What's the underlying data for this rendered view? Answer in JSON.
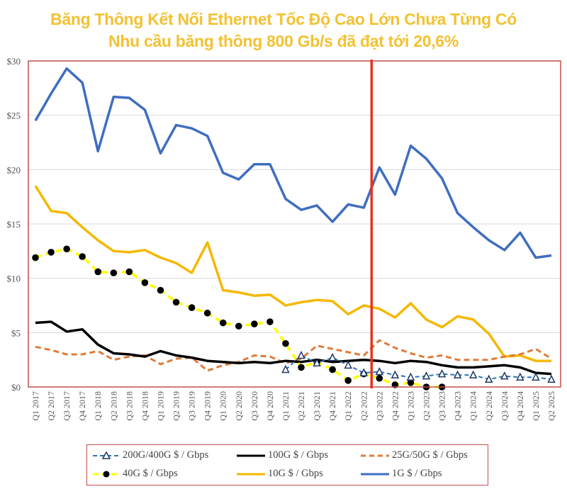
{
  "title_line1": "Băng Thông Kết Nối Ethernet Tốc Độ Cao Lớn Chưa Từng Có",
  "title_line2": "Nhu cầu băng thông 800 Gb/s đã đạt tới 20,6%",
  "colors": {
    "title": "#f2c232",
    "frame": "#c0504d",
    "marker_line": "#e8321e",
    "gridline": "#d9d9d9"
  },
  "chart_data": {
    "type": "line",
    "title": "Băng Thông Kết Nối Ethernet Tốc Độ Cao Lớn Chưa Từng Có",
    "subtitle": "Nhu cầu băng thông 800 Gb/s đã đạt tới 20,6%",
    "xlabel": "",
    "ylabel": "",
    "ylim": [
      0,
      30
    ],
    "yticks": [
      0,
      5,
      10,
      15,
      20,
      25,
      30
    ],
    "ytick_labels": [
      "$0",
      "$5",
      "$10",
      "$15",
      "$20",
      "$25",
      "$30"
    ],
    "grid": true,
    "legend_position": "bottom",
    "vertical_marker_after": "Q2 2022",
    "x": [
      "Q1 2017",
      "Q2 2017",
      "Q3 2017",
      "Q4 2017",
      "Q1 2018",
      "Q2 2018",
      "Q3 2018",
      "Q4 2018",
      "Q1 2019",
      "Q2 2019",
      "Q3 2019",
      "Q4 2019",
      "Q1 2020",
      "Q2 2020",
      "Q3 2020",
      "Q4 2020",
      "Q1 2021",
      "Q2 2021",
      "Q3 2021",
      "Q4 2021",
      "Q1 2022",
      "Q2 2022",
      "Q3 2022",
      "Q4 2022",
      "Q1 2023",
      "Q2 2023",
      "Q3 2023",
      "Q4 2023",
      "Q1 2024",
      "Q2 2024",
      "Q3 2024",
      "Q4 2024",
      "Q1 2025",
      "Q2 2025"
    ],
    "series": [
      {
        "name": "200G/400G $ / Gbps",
        "key": "s200",
        "color": "#2e75b6",
        "style": "dash-triangle",
        "values": [
          null,
          null,
          null,
          null,
          null,
          null,
          null,
          null,
          null,
          null,
          null,
          null,
          null,
          null,
          null,
          null,
          1.6,
          2.9,
          2.2,
          2.7,
          2.0,
          1.3,
          1.4,
          1.1,
          0.9,
          1.0,
          1.2,
          1.1,
          1.1,
          0.7,
          1.0,
          0.9,
          0.9,
          0.7
        ]
      },
      {
        "name": "100G $ / Gbps",
        "key": "s100",
        "color": "#000000",
        "style": "solid",
        "values": [
          5.9,
          6.0,
          5.1,
          5.3,
          3.9,
          3.1,
          3.0,
          2.8,
          3.3,
          2.9,
          2.7,
          2.4,
          2.3,
          2.2,
          2.3,
          2.2,
          2.4,
          2.3,
          2.5,
          2.3,
          2.4,
          2.5,
          2.4,
          2.2,
          2.4,
          2.3,
          2.0,
          1.8,
          1.8,
          1.9,
          2.0,
          1.8,
          1.3,
          1.2
        ]
      },
      {
        "name": "25G/50G $ / Gbps",
        "key": "s25",
        "color": "#e07b39",
        "style": "dash",
        "values": [
          3.7,
          3.4,
          3.0,
          3.0,
          3.3,
          2.5,
          2.8,
          2.9,
          2.1,
          2.6,
          2.7,
          1.5,
          2.0,
          2.3,
          2.9,
          2.8,
          2.2,
          2.6,
          3.8,
          3.5,
          3.2,
          2.9,
          4.3,
          3.6,
          3.1,
          2.7,
          2.9,
          2.5,
          2.5,
          2.5,
          2.8,
          3.0,
          3.5,
          2.6
        ]
      },
      {
        "name": "40G $ / Gbps",
        "key": "s40",
        "color": "#ffff00",
        "style": "dash-dot",
        "values": [
          11.9,
          12.4,
          12.7,
          12.0,
          10.6,
          10.5,
          10.6,
          9.6,
          8.9,
          7.8,
          7.3,
          6.8,
          5.9,
          5.6,
          5.8,
          6.0,
          4.0,
          1.8,
          2.3,
          1.6,
          0.6,
          1.2,
          0.8,
          0.2,
          0.4,
          0.0,
          0.0,
          null,
          null,
          null,
          null,
          null,
          null,
          null
        ]
      },
      {
        "name": "10G $ / Gbps",
        "key": "s10",
        "color": "#f5b800",
        "style": "solid",
        "values": [
          18.5,
          16.2,
          16.0,
          14.7,
          13.5,
          12.5,
          12.4,
          12.6,
          11.9,
          11.4,
          10.5,
          13.3,
          8.9,
          8.7,
          8.4,
          8.5,
          7.5,
          7.8,
          8.0,
          7.9,
          6.7,
          7.5,
          7.2,
          6.4,
          7.7,
          6.2,
          5.5,
          6.5,
          6.2,
          4.9,
          2.8,
          2.9,
          2.4,
          2.4
        ]
      },
      {
        "name": "1G $ / Gbps",
        "key": "s1",
        "color": "#3f6ebf",
        "style": "solid",
        "values": [
          24.5,
          27.0,
          29.3,
          28.0,
          21.7,
          26.7,
          26.6,
          25.5,
          21.5,
          24.1,
          23.8,
          23.1,
          19.7,
          19.1,
          20.5,
          20.5,
          17.3,
          16.3,
          16.7,
          15.2,
          16.8,
          16.5,
          20.2,
          17.7,
          22.2,
          21.0,
          19.2,
          16.0,
          14.7,
          13.5,
          12.6,
          14.2,
          11.9,
          12.1
        ]
      }
    ]
  },
  "legend": [
    {
      "label": "200G/400G $ / Gbps",
      "key": "s200"
    },
    {
      "label": "100G $ / Gbps",
      "key": "s100"
    },
    {
      "label": "25G/50G $ / Gbps",
      "key": "s25"
    },
    {
      "label": "40G $ / Gbps",
      "key": "s40"
    },
    {
      "label": "10G $ / Gbps",
      "key": "s10"
    },
    {
      "label": "1G $ / Gbps",
      "key": "s1"
    }
  ]
}
